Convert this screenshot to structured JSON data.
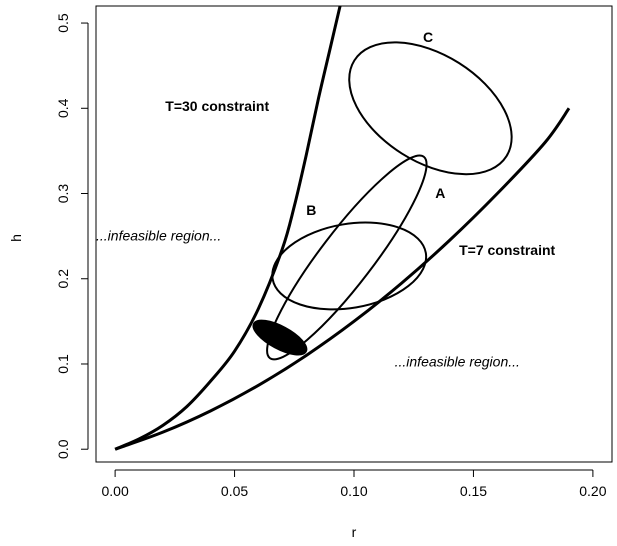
{
  "chart_data": {
    "type": "line",
    "title": "",
    "xlabel": "r",
    "ylabel": "h",
    "xlim": [
      -0.008,
      0.208
    ],
    "ylim": [
      -0.015,
      0.52
    ],
    "x_ticks": [
      {
        "value": 0.0,
        "label": "0.00"
      },
      {
        "value": 0.05,
        "label": "0.05"
      },
      {
        "value": 0.1,
        "label": "0.10"
      },
      {
        "value": 0.15,
        "label": "0.15"
      },
      {
        "value": 0.2,
        "label": "0.20"
      }
    ],
    "y_ticks": [
      {
        "value": 0.0,
        "label": "0.0"
      },
      {
        "value": 0.1,
        "label": "0.1"
      },
      {
        "value": 0.2,
        "label": "0.2"
      },
      {
        "value": 0.3,
        "label": "0.3"
      },
      {
        "value": 0.4,
        "label": "0.4"
      },
      {
        "value": 0.5,
        "label": "0.5"
      }
    ],
    "grid": false,
    "curves": [
      {
        "name": "T=30 constraint",
        "x": [
          0.0,
          0.01,
          0.02,
          0.03,
          0.04,
          0.05,
          0.06,
          0.07,
          0.075,
          0.08,
          0.085,
          0.09,
          0.095
        ],
        "y": [
          0.0,
          0.012,
          0.028,
          0.05,
          0.08,
          0.115,
          0.165,
          0.235,
          0.285,
          0.345,
          0.41,
          0.47,
          0.53
        ]
      },
      {
        "name": "T=7 constraint",
        "x": [
          0.0,
          0.02,
          0.04,
          0.06,
          0.08,
          0.1,
          0.12,
          0.14,
          0.16,
          0.18,
          0.19
        ],
        "y": [
          0.0,
          0.02,
          0.045,
          0.075,
          0.11,
          0.15,
          0.195,
          0.245,
          0.3,
          0.36,
          0.4
        ]
      }
    ],
    "ellipses": [
      {
        "label": "C",
        "center": [
          0.132,
          0.4
        ],
        "points": [
          [
            0.128,
            0.335
          ],
          [
            0.098,
            0.445
          ],
          [
            0.165,
            0.355
          ],
          [
            0.11,
            0.475
          ]
        ],
        "filled": false
      },
      {
        "label": "A",
        "center": [
          0.097,
          0.225
        ],
        "points": [
          [
            0.061,
            0.105
          ],
          [
            0.132,
            0.345
          ],
          [
            0.072,
            0.125
          ],
          [
            0.115,
            0.33
          ],
          [
            0.083,
            0.165
          ],
          [
            0.12,
            0.27
          ]
        ],
        "filled": false
      },
      {
        "label": "B",
        "center": [
          0.098,
          0.215
        ],
        "points": [
          [
            0.078,
            0.25
          ],
          [
            0.118,
            0.185
          ],
          [
            0.088,
            0.26
          ],
          [
            0.11,
            0.175
          ]
        ],
        "filled": false
      },
      {
        "label": "",
        "center": [
          0.069,
          0.131
        ],
        "points": [
          [
            0.06,
            0.145
          ],
          [
            0.078,
            0.118
          ]
        ],
        "filled": true
      }
    ],
    "annotations": [
      {
        "text": "C",
        "x": 0.131,
        "y": 0.478,
        "bold": true,
        "italic": false,
        "anchor": "middle"
      },
      {
        "text": "T=30 constraint",
        "x": 0.021,
        "y": 0.397,
        "bold": true,
        "italic": false,
        "anchor": "start"
      },
      {
        "text": "A",
        "x": 0.134,
        "y": 0.295,
        "bold": true,
        "italic": false,
        "anchor": "start"
      },
      {
        "text": "B",
        "x": 0.08,
        "y": 0.275,
        "bold": true,
        "italic": false,
        "anchor": "start"
      },
      {
        "text": "...infeasible region...",
        "x": -0.008,
        "y": 0.245,
        "bold": false,
        "italic": true,
        "anchor": "start"
      },
      {
        "text": "T=7 constraint",
        "x": 0.144,
        "y": 0.228,
        "bold": true,
        "italic": false,
        "anchor": "start"
      },
      {
        "text": "...infeasible region...",
        "x": 0.117,
        "y": 0.097,
        "bold": false,
        "italic": true,
        "anchor": "start"
      }
    ]
  }
}
